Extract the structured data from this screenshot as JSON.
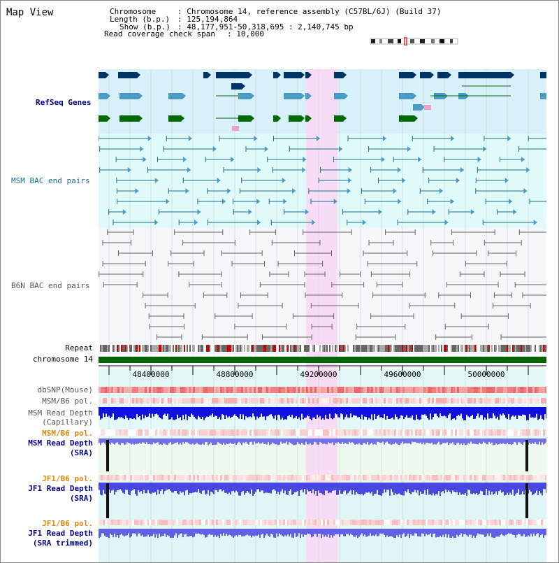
{
  "title": "Map View",
  "info": {
    "chromosome_label": "Chromosome",
    "chromosome_value": ": Chromosome 14, reference assembly (C57BL/6J) (Build 37)",
    "length_label": "Length (b.p.)",
    "length_value": ": 125,194,864",
    "show_label": "Show (b.p.)",
    "show_value": ": 48,177,951-50,318,695 : 2,140,745 bp",
    "coverage_label": "Read coverage check span",
    "coverage_value": ": 10,000"
  },
  "tracks": {
    "refseq": "RefSeq Genes",
    "msm_bac": "MSM BAC end pairs",
    "b6n_bac": "B6N BAC end pairs",
    "repeat": "Repeat",
    "chromosome": "chromosome 14",
    "dbsnp": "dbSNP(Mouse)",
    "msm_b6_pol": "MSM/B6 pol.",
    "msm_depth_cap_1": "MSM Read Depth",
    "msm_depth_cap_2": "(Capillary)",
    "msm_b6_pol_2": "MSM/B6 pol.",
    "msm_depth_sra_1": "MSM Read Depth",
    "msm_depth_sra_2": "(SRA)",
    "jf1_pol_1": "JF1/B6 pol.",
    "jf1_depth_1": "JF1 Read Depth",
    "jf1_depth_2": "(SRA)",
    "jf1_pol_2": "JF1/B6 pol.",
    "jf1_trim_1": "JF1 Read Depth",
    "jf1_trim_2": "(SRA trimmed)"
  },
  "ruler_ticks": [
    "48400000",
    "48800000",
    "49200000",
    "49600000",
    "50000000"
  ],
  "colors": {
    "refseq_bg": "#d8f0fa",
    "bac_bg": "#e0fafa",
    "b6n_bg": "#f4f6fa",
    "highlight": "#f8d8f4",
    "chromosome_bar": "#006400",
    "gene_dark": "#003366",
    "gene_mid": "#4a9cc4",
    "gene_green": "#006a00",
    "pink": "#f0a0c0"
  },
  "icons": {
    "ideogram": "chromosome-ideogram"
  }
}
